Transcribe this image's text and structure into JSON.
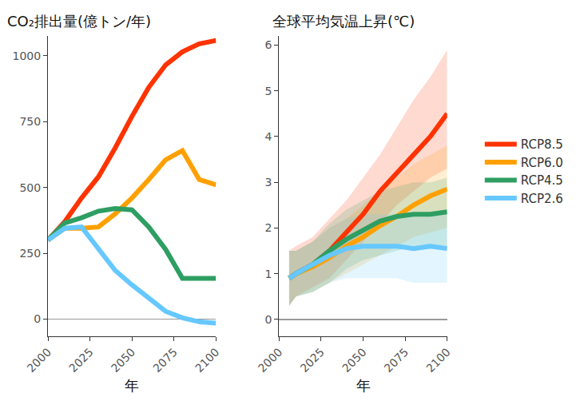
{
  "chart_data": [
    {
      "type": "line",
      "title": "CO₂排出量(億トン/年)",
      "xlabel": "年",
      "x": [
        2000,
        2010,
        2020,
        2030,
        2040,
        2050,
        2060,
        2070,
        2080,
        2090,
        2100
      ],
      "xlim": [
        2000,
        2100
      ],
      "xticks": [
        2000,
        2025,
        2050,
        2075,
        2100
      ],
      "ylim": [
        -65,
        1075
      ],
      "yticks": [
        0,
        250,
        500,
        750,
        1000
      ],
      "grid": false,
      "series": [
        {
          "name": "RCP8.5",
          "color": "#ff3300",
          "values": [
            300,
            370,
            460,
            540,
            650,
            770,
            880,
            965,
            1015,
            1045,
            1058
          ]
        },
        {
          "name": "RCP6.0",
          "color": "#ffa000",
          "values": [
            300,
            345,
            345,
            350,
            400,
            460,
            530,
            605,
            640,
            530,
            510
          ]
        },
        {
          "name": "RCP4.5",
          "color": "#2e9e62",
          "values": [
            300,
            365,
            385,
            410,
            420,
            415,
            350,
            265,
            155,
            155,
            155
          ]
        },
        {
          "name": "RCP2.6",
          "color": "#66c8ff",
          "values": [
            300,
            345,
            350,
            270,
            185,
            130,
            80,
            30,
            5,
            -10,
            -15
          ]
        }
      ]
    },
    {
      "type": "line",
      "title": "全球平均気温上昇(℃)",
      "xlabel": "年",
      "x": [
        2006,
        2010,
        2020,
        2030,
        2040,
        2050,
        2060,
        2070,
        2080,
        2090,
        2100
      ],
      "xlim": [
        2000,
        2100
      ],
      "xticks": [
        2000,
        2025,
        2050,
        2075,
        2100
      ],
      "ylim": [
        -0.37,
        6.2
      ],
      "yticks": [
        0,
        1,
        2,
        3,
        4,
        5,
        6
      ],
      "grid": false,
      "legend": "right",
      "series": [
        {
          "name": "RCP8.5",
          "color": "#ff3300",
          "values": [
            0.9,
            1.0,
            1.2,
            1.5,
            1.9,
            2.3,
            2.8,
            3.2,
            3.6,
            4.0,
            4.5
          ],
          "lower": [
            0.3,
            0.5,
            0.7,
            0.9,
            1.3,
            1.7,
            2.1,
            2.5,
            2.8,
            3.1,
            3.3
          ],
          "upper": [
            1.5,
            1.6,
            1.8,
            2.2,
            2.6,
            3.1,
            3.6,
            4.2,
            4.8,
            5.3,
            5.9
          ]
        },
        {
          "name": "RCP6.0",
          "color": "#ffa000",
          "values": [
            0.9,
            1.0,
            1.15,
            1.35,
            1.6,
            1.8,
            2.05,
            2.25,
            2.5,
            2.7,
            2.85
          ],
          "lower": [
            0.3,
            0.5,
            0.6,
            0.8,
            1.0,
            1.2,
            1.4,
            1.6,
            1.8,
            1.9,
            2.0
          ],
          "upper": [
            1.5,
            1.5,
            1.7,
            2.0,
            2.2,
            2.5,
            2.8,
            3.1,
            3.4,
            3.6,
            3.8
          ]
        },
        {
          "name": "RCP4.5",
          "color": "#2e9e62",
          "values": [
            0.9,
            1.0,
            1.2,
            1.5,
            1.75,
            1.95,
            2.15,
            2.25,
            2.3,
            2.3,
            2.35
          ],
          "lower": [
            0.3,
            0.5,
            0.6,
            0.8,
            1.1,
            1.3,
            1.4,
            1.5,
            1.6,
            1.6,
            1.6
          ],
          "upper": [
            1.5,
            1.5,
            1.7,
            2.1,
            2.4,
            2.6,
            2.8,
            2.9,
            3.0,
            3.0,
            3.1
          ]
        },
        {
          "name": "RCP2.6",
          "color": "#66c8ff",
          "values": [
            0.9,
            1.0,
            1.2,
            1.4,
            1.55,
            1.6,
            1.6,
            1.6,
            1.55,
            1.6,
            1.55
          ],
          "lower": [
            0.3,
            0.5,
            0.6,
            0.8,
            0.9,
            0.9,
            0.9,
            0.9,
            0.8,
            0.8,
            0.8
          ],
          "upper": [
            1.5,
            1.5,
            1.7,
            2.0,
            2.2,
            2.3,
            2.3,
            2.3,
            2.3,
            2.3,
            2.3
          ]
        }
      ]
    }
  ]
}
